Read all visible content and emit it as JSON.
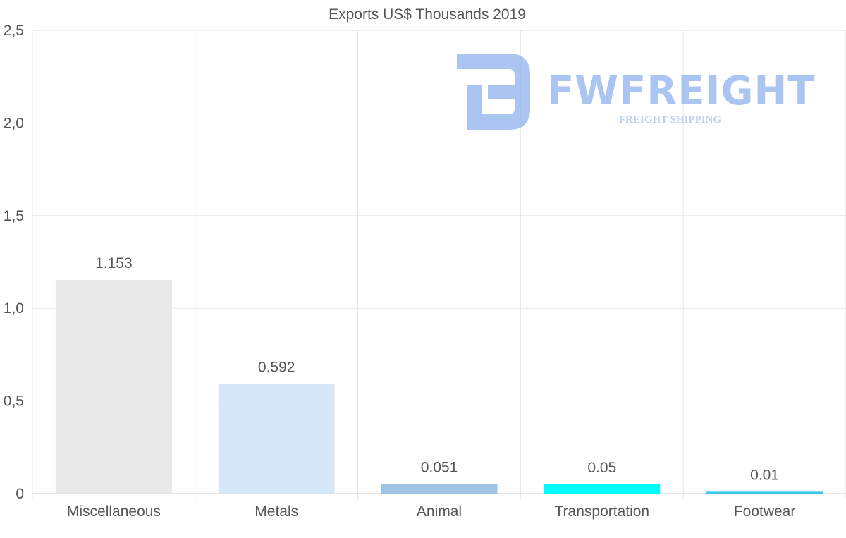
{
  "chart_data": {
    "type": "bar",
    "title": "Exports US$ Thousands 2019",
    "categories": [
      "Miscellaneous",
      "Metals",
      "Animal",
      "Transportation",
      "Footwear"
    ],
    "values": [
      1.153,
      0.592,
      0.051,
      0.05,
      0.01
    ],
    "value_labels": [
      "1.153",
      "0.592",
      "0.051",
      "0.05",
      "0.01"
    ],
    "colors": [
      "#e8e8e8",
      "#d6e7f8",
      "#9ec4e4",
      "#00fbfb",
      "#3cc4f0"
    ],
    "ylim": [
      0,
      2.5
    ],
    "yticks": [
      0,
      0.5,
      1.0,
      1.5,
      2.0,
      2.5
    ],
    "ytick_labels": [
      "0",
      "0,5",
      "1,0",
      "1,5",
      "2,0",
      "2,5"
    ],
    "xlabel": "",
    "ylabel": "",
    "grid": true
  },
  "watermark": {
    "brand": "FWFREIGHT",
    "tagline": "FREIGHT SHIPPING",
    "icon": "fw-logo-icon",
    "color": "#8fb2ee"
  }
}
